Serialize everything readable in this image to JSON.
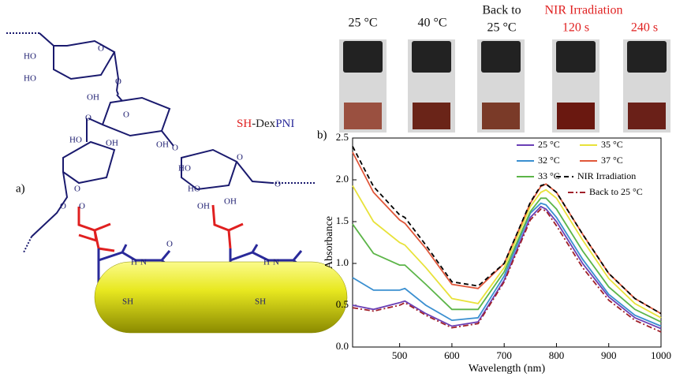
{
  "figure": {
    "panel_a": "a)",
    "panel_b": "b)",
    "polymer_sh": "SH",
    "polymer_dex": "-Dex",
    "polymer_pni": "PNI",
    "structure_labels": [
      "HO",
      "HO",
      "OH",
      "O",
      "O",
      "O",
      "O",
      "HO",
      "OH",
      "OH",
      "O",
      "O",
      "O",
      "HO",
      "HO",
      "OH",
      "OH",
      "O",
      "O",
      "O",
      "N",
      "H",
      "O",
      "N",
      "H",
      "SH",
      "SH"
    ],
    "photo_labels": [
      "25 °C",
      "40 °C",
      "Back to",
      "25 °C",
      "NIR Irradiation",
      "120 s",
      "240 s"
    ]
  },
  "chart_data": {
    "type": "line",
    "x_label": "Wavelength (nm)",
    "y_label": "Absorbance",
    "x": [
      410,
      450,
      500,
      510,
      550,
      600,
      650,
      700,
      750,
      770,
      780,
      800,
      850,
      900,
      950,
      1000
    ],
    "series": [
      {
        "name": "25 °C",
        "color": "#6a3fb5",
        "dash": "solid",
        "values": [
          0.5,
          0.45,
          0.53,
          0.55,
          0.4,
          0.25,
          0.3,
          0.8,
          1.55,
          1.68,
          1.65,
          1.5,
          1.0,
          0.6,
          0.35,
          0.22
        ]
      },
      {
        "name": "32 °C",
        "color": "#3a8fd0",
        "dash": "solid",
        "values": [
          0.83,
          0.68,
          0.68,
          0.7,
          0.5,
          0.32,
          0.35,
          0.85,
          1.6,
          1.72,
          1.7,
          1.55,
          1.05,
          0.63,
          0.38,
          0.25
        ]
      },
      {
        "name": "33 °C",
        "color": "#5cb548",
        "dash": "solid",
        "values": [
          1.47,
          1.12,
          0.98,
          0.98,
          0.75,
          0.45,
          0.45,
          0.9,
          1.62,
          1.78,
          1.78,
          1.65,
          1.15,
          0.72,
          0.45,
          0.3
        ]
      },
      {
        "name": "35 °C",
        "color": "#e8e23a",
        "dash": "solid",
        "values": [
          1.93,
          1.5,
          1.25,
          1.22,
          0.95,
          0.58,
          0.52,
          0.95,
          1.68,
          1.85,
          1.88,
          1.78,
          1.28,
          0.82,
          0.52,
          0.35
        ]
      },
      {
        "name": "37 °C",
        "color": "#e0573a",
        "dash": "solid",
        "values": [
          2.33,
          1.85,
          1.52,
          1.48,
          1.18,
          0.75,
          0.7,
          1.0,
          1.72,
          1.92,
          1.95,
          1.85,
          1.35,
          0.88,
          0.58,
          0.4
        ]
      },
      {
        "name": "NIR Irradiation",
        "color": "#000000",
        "dash": "dashed",
        "values": [
          2.4,
          1.92,
          1.58,
          1.55,
          1.22,
          0.78,
          0.73,
          1.0,
          1.73,
          1.93,
          1.95,
          1.85,
          1.35,
          0.88,
          0.58,
          0.4
        ]
      },
      {
        "name": "Back to 25 °C",
        "color": "#a0202a",
        "dash": "dashdot",
        "values": [
          0.47,
          0.43,
          0.5,
          0.53,
          0.38,
          0.23,
          0.28,
          0.78,
          1.52,
          1.65,
          1.63,
          1.45,
          0.95,
          0.56,
          0.32,
          0.18
        ]
      }
    ],
    "xlim": [
      410,
      1000
    ],
    "ylim": [
      0,
      2.5
    ],
    "xticks": [
      500,
      600,
      700,
      800,
      900,
      1000
    ],
    "yticks": [
      {
        "value": 0,
        "label": "0.0"
      },
      0.5,
      {
        "value": 1,
        "label": "1.0"
      },
      1.5,
      {
        "value": 2,
        "label": "2.0"
      },
      2.5
    ]
  }
}
